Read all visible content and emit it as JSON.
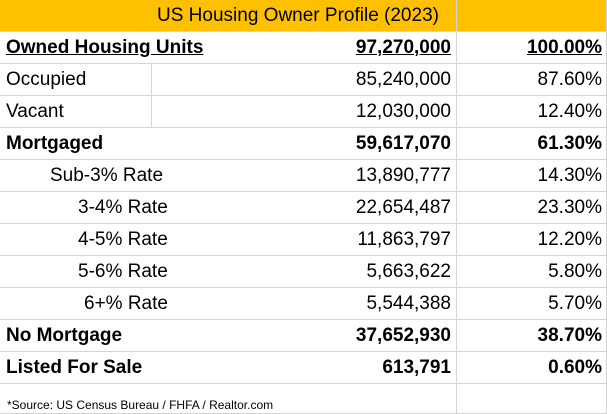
{
  "sheet": {
    "title": "US Housing Owner Profile (2023)",
    "header": {
      "label": "Owned Housing Units",
      "value": "97,270,000",
      "pct": "100.00%"
    },
    "rows": [
      {
        "label": "Occupied",
        "value": "85,240,000",
        "pct": "87.60%"
      },
      {
        "label": "Vacant",
        "value": "12,030,000",
        "pct": "12.40%"
      },
      {
        "label": "Mortgaged",
        "value": "59,617,070",
        "pct": "61.30%"
      },
      {
        "label": "Sub-3% Rate",
        "value": "13,890,777",
        "pct": "14.30%"
      },
      {
        "label": "3-4% Rate",
        "value": "22,654,487",
        "pct": "23.30%"
      },
      {
        "label": "4-5% Rate",
        "value": "11,863,797",
        "pct": "12.20%"
      },
      {
        "label": "5-6% Rate",
        "value": "5,663,622",
        "pct": "5.80%"
      },
      {
        "label": "6+% Rate",
        "value": "5,544,388",
        "pct": "5.70%"
      },
      {
        "label": "No Mortgage",
        "value": "37,652,930",
        "pct": "38.70%"
      },
      {
        "label": "Listed For Sale",
        "value": "613,791",
        "pct": "0.60%"
      }
    ],
    "footnote": "*Source: US Census Bureau / FHFA / Realtor.com",
    "accent_color": "#ffc000"
  }
}
